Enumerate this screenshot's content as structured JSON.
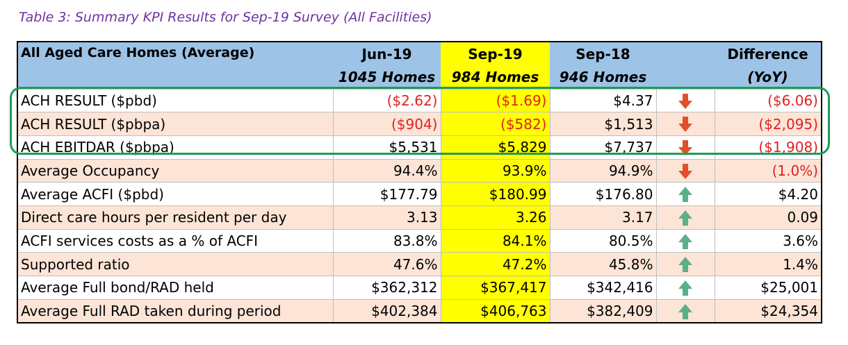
{
  "caption": "Table 3: Summary KPI Results for Sep-19 Survey (All Facilities)",
  "colors": {
    "header_bg": "#9dc3e6",
    "highlight_col": "#ffff00",
    "peach_row": "#fce4d6",
    "negative_text": "#e02020",
    "down_arrow": "#e0502a",
    "up_arrow": "#5bb08a",
    "group_box": "#1e9b55",
    "caption_text": "#7030a0"
  },
  "table": {
    "header": {
      "label": "All Aged Care Homes (Average)",
      "col1": {
        "period": "Jun-19",
        "homes": "1045 Homes"
      },
      "col2": {
        "period": "Sep-19",
        "homes": "984 Homes"
      },
      "col3": {
        "period": "Sep-18",
        "homes": "946 Homes"
      },
      "diff": {
        "line1": "Difference",
        "line2": "(YoY)"
      }
    },
    "rows": [
      {
        "label": "ACH RESULT ($pbd)",
        "jun19": "($2.62)",
        "sep19": "($1.69)",
        "sep18": "$4.37",
        "trend": "down-arrow-icon",
        "diff": "($6.06)"
      },
      {
        "label": "ACH RESULT ($pbpa)",
        "jun19": "($904)",
        "sep19": "($582)",
        "sep18": "$1,513",
        "trend": "down-arrow-icon",
        "diff": "($2,095)"
      },
      {
        "label": "ACH EBITDAR ($pbpa)",
        "jun19": "$5,531",
        "sep19": "$5,829",
        "sep18": "$7,737",
        "trend": "down-arrow-icon",
        "diff": "($1,908)"
      },
      {
        "label": "Average Occupancy",
        "jun19": "94.4%",
        "sep19": "93.9%",
        "sep18": "94.9%",
        "trend": "down-arrow-icon",
        "diff": "(1.0%)"
      },
      {
        "label": "Average ACFI ($pbd)",
        "jun19": "$177.79",
        "sep19": "$180.99",
        "sep18": "$176.80",
        "trend": "up-arrow-icon",
        "diff": "$4.20"
      },
      {
        "label": "Direct care hours per resident per day",
        "jun19": "3.13",
        "sep19": "3.26",
        "sep18": "3.17",
        "trend": "up-arrow-icon",
        "diff": "0.09"
      },
      {
        "label": "ACFI services costs as a % of ACFI",
        "jun19": "83.8%",
        "sep19": "84.1%",
        "sep18": "80.5%",
        "trend": "up-arrow-icon",
        "diff": "3.6%"
      },
      {
        "label": "Supported ratio",
        "jun19": "47.6%",
        "sep19": "47.2%",
        "sep18": "45.8%",
        "trend": "up-arrow-icon",
        "diff": "1.4%"
      },
      {
        "label": "Average Full bond/RAD held",
        "jun19": "$362,312",
        "sep19": "$367,417",
        "sep18": "$342,416",
        "trend": "up-arrow-icon",
        "diff": "$25,001"
      },
      {
        "label": "Average Full RAD taken during period",
        "jun19": "$402,384",
        "sep19": "$406,763",
        "sep18": "$382,409",
        "trend": "up-arrow-icon",
        "diff": "$24,354"
      }
    ]
  }
}
